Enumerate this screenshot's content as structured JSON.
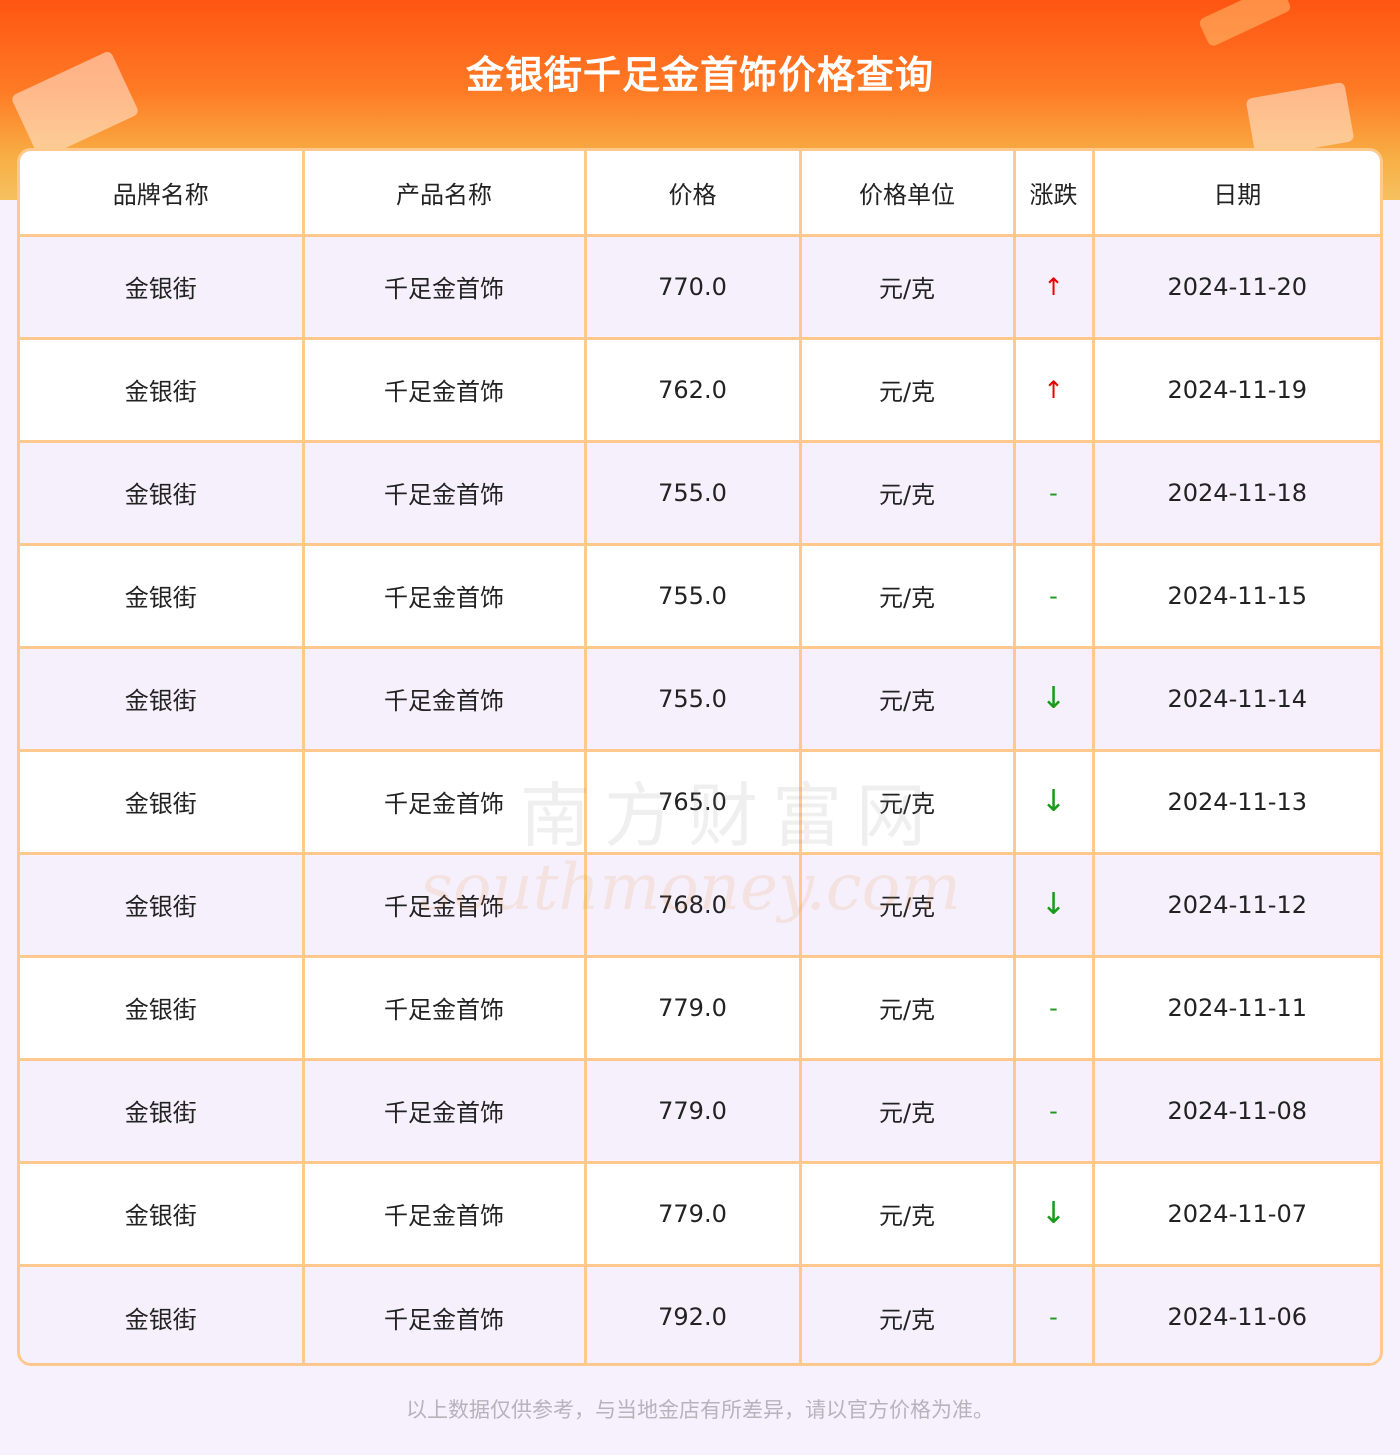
{
  "title": "金银街千足金首饰价格查询",
  "headers": [
    "品牌名称",
    "产品名称",
    "价格",
    "价格单位",
    "涨跌",
    "日期"
  ],
  "rows": [
    {
      "brand": "金银街",
      "product": "千足金首饰",
      "price": "770.0",
      "unit": "元/克",
      "change": "↑",
      "trend": "up",
      "date": "2024-11-20"
    },
    {
      "brand": "金银街",
      "product": "千足金首饰",
      "price": "762.0",
      "unit": "元/克",
      "change": "↑",
      "trend": "up",
      "date": "2024-11-19"
    },
    {
      "brand": "金银街",
      "product": "千足金首饰",
      "price": "755.0",
      "unit": "元/克",
      "change": "-",
      "trend": "flat",
      "date": "2024-11-18"
    },
    {
      "brand": "金银街",
      "product": "千足金首饰",
      "price": "755.0",
      "unit": "元/克",
      "change": "-",
      "trend": "flat",
      "date": "2024-11-15"
    },
    {
      "brand": "金银街",
      "product": "千足金首饰",
      "price": "755.0",
      "unit": "元/克",
      "change": "↓",
      "trend": "down",
      "date": "2024-11-14"
    },
    {
      "brand": "金银街",
      "product": "千足金首饰",
      "price": "765.0",
      "unit": "元/克",
      "change": "↓",
      "trend": "down",
      "date": "2024-11-13"
    },
    {
      "brand": "金银街",
      "product": "千足金首饰",
      "price": "768.0",
      "unit": "元/克",
      "change": "↓",
      "trend": "down",
      "date": "2024-11-12"
    },
    {
      "brand": "金银街",
      "product": "千足金首饰",
      "price": "779.0",
      "unit": "元/克",
      "change": "-",
      "trend": "flat",
      "date": "2024-11-11"
    },
    {
      "brand": "金银街",
      "product": "千足金首饰",
      "price": "779.0",
      "unit": "元/克",
      "change": "-",
      "trend": "flat",
      "date": "2024-11-08"
    },
    {
      "brand": "金银街",
      "product": "千足金首饰",
      "price": "779.0",
      "unit": "元/克",
      "change": "↓",
      "trend": "down",
      "date": "2024-11-07"
    },
    {
      "brand": "金银街",
      "product": "千足金首饰",
      "price": "792.0",
      "unit": "元/克",
      "change": "-",
      "trend": "flat",
      "date": "2024-11-06"
    }
  ],
  "watermark": {
    "cn": "南方财富网",
    "en": "southmoney.com"
  },
  "footer": "以上数据仅供参考，与当地金店有所差异，请以官方价格为准。",
  "colors": {
    "up": "#e60000",
    "down": "#1a9a1a",
    "border": "#ffc98e",
    "banner": "#ff5512"
  }
}
